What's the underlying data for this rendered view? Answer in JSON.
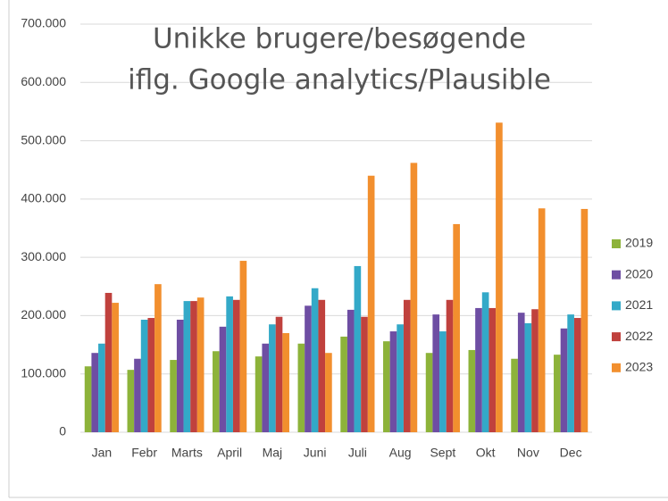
{
  "chart_data": {
    "type": "bar",
    "title": [
      "Unikke brugere/besøgende",
      "iflg. Google analytics/Plausible"
    ],
    "categories": [
      "Jan",
      "Febr",
      "Marts",
      "April",
      "Maj",
      "Juni",
      "Juli",
      "Aug",
      "Sept",
      "Okt",
      "Nov",
      "Dec"
    ],
    "series": [
      {
        "name": "2019",
        "color": "#8db33a",
        "values": [
          113000,
          107000,
          124000,
          139000,
          130000,
          152000,
          164000,
          156000,
          136000,
          141000,
          126000,
          133000
        ]
      },
      {
        "name": "2020",
        "color": "#6e4ea3",
        "values": [
          136000,
          126000,
          193000,
          181000,
          152000,
          217000,
          210000,
          173000,
          202000,
          213000,
          205000,
          178000
        ]
      },
      {
        "name": "2021",
        "color": "#33a9c8",
        "values": [
          152000,
          193000,
          225000,
          233000,
          185000,
          247000,
          285000,
          185000,
          173000,
          240000,
          187000,
          202000
        ]
      },
      {
        "name": "2022",
        "color": "#c0413d",
        "values": [
          239000,
          196000,
          225000,
          227000,
          198000,
          227000,
          198000,
          227000,
          227000,
          213000,
          211000,
          196000
        ]
      },
      {
        "name": "2023",
        "color": "#f28f2e",
        "values": [
          222000,
          254000,
          231000,
          294000,
          170000,
          136000,
          440000,
          462000,
          357000,
          531000,
          384000,
          383000
        ]
      }
    ],
    "ylim": [
      0,
      700000
    ],
    "yticks": [
      0,
      {
        "value": 100000,
        "label": "100.000"
      },
      {
        "value": 200000,
        "label": "200.000"
      },
      {
        "value": 300000,
        "label": "300.000"
      },
      {
        "value": 400000,
        "label": "400.000"
      },
      {
        "value": 500000,
        "label": "500.000"
      },
      {
        "value": 600000,
        "label": "600.000"
      },
      {
        "value": 700000,
        "label": "700.000"
      }
    ],
    "grid": true,
    "legend": "right"
  }
}
